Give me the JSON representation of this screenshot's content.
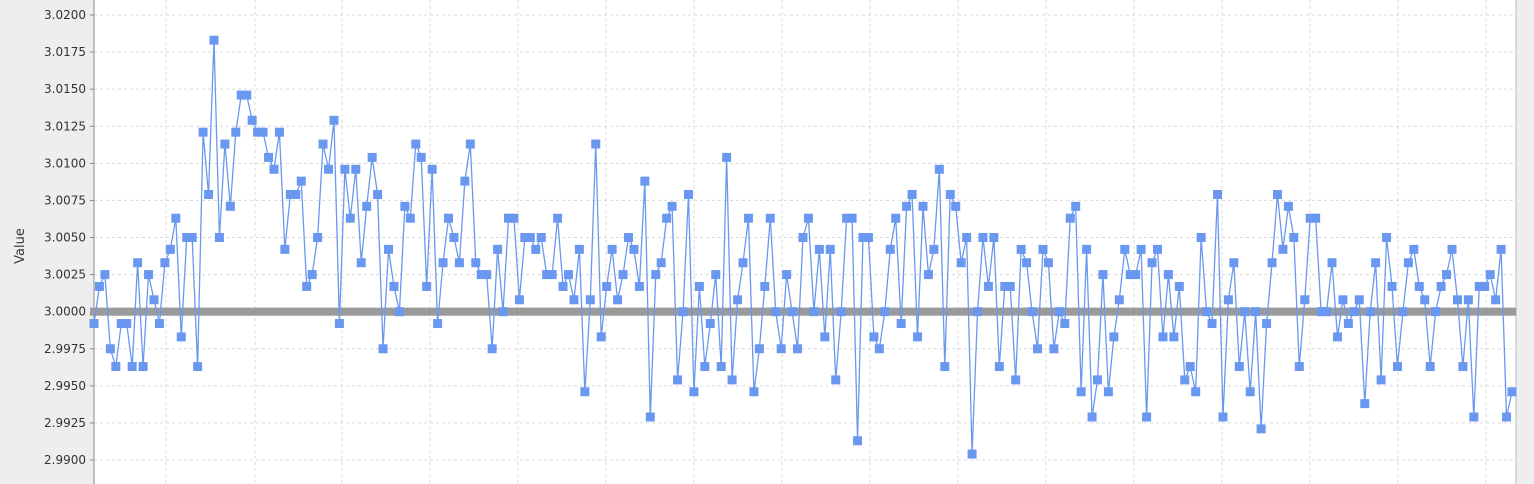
{
  "colors": {
    "background": "#eeeeee",
    "plot_background": "#ffffff",
    "grid": "#d9d9d9",
    "series_1": "#6a98f0",
    "series_2": "#9a9a9a"
  },
  "chart_data": {
    "type": "line",
    "title": "",
    "xlabel": "",
    "ylabel": "Value",
    "ylim": [
      2.9884,
      3.0211
    ],
    "grid": true,
    "markers": "square",
    "yticks": [
      "3.0200",
      "3.0175",
      "3.0150",
      "3.0125",
      "3.0100",
      "3.0075",
      "3.0050",
      "3.0025",
      "3.0000",
      "2.9975",
      "2.9950",
      "2.9925",
      "2.9900"
    ],
    "series": [
      {
        "values": [
          2.9992,
          3.0017,
          3.0025,
          2.9975,
          2.9963,
          2.9992,
          2.9992,
          2.9963,
          3.0033,
          2.9963,
          3.0025,
          3.0008,
          2.9992,
          3.0033,
          3.0042,
          3.0063,
          2.9983,
          3.005,
          3.005,
          2.9963,
          3.0121,
          3.0079,
          3.0183,
          3.005,
          3.0113,
          3.0071,
          3.0121,
          3.0146,
          3.0146,
          3.0129,
          3.0121,
          3.0121,
          3.0104,
          3.0096,
          3.0121,
          3.0042,
          3.0079,
          3.0079,
          3.0088,
          3.0017,
          3.0025,
          3.005,
          3.0113,
          3.0096,
          3.0129,
          2.9992,
          3.0096,
          3.0063,
          3.0096,
          3.0033,
          3.0071,
          3.0104,
          3.0079,
          2.9975,
          3.0042,
          3.0017,
          3.0,
          3.0071,
          3.0063,
          3.0113,
          3.0104,
          3.0017,
          3.0096,
          2.9992,
          3.0033,
          3.0063,
          3.005,
          3.0033,
          3.0088,
          3.0113,
          3.0033,
          3.0025,
          3.0025,
          2.9975,
          3.0042,
          3.0,
          3.0063,
          3.0063,
          3.0008,
          3.005,
          3.005,
          3.0042,
          3.005,
          3.0025,
          3.0025,
          3.0063,
          3.0017,
          3.0025,
          3.0008,
          3.0042,
          2.9946,
          3.0008,
          3.0113,
          2.9983,
          3.0017,
          3.0042,
          3.0008,
          3.0025,
          3.005,
          3.0042,
          3.0017,
          3.0088,
          2.9929,
          3.0025,
          3.0033,
          3.0063,
          3.0071,
          2.9954,
          3.0,
          3.0079,
          2.9946,
          3.0017,
          2.9963,
          2.9992,
          3.0025,
          2.9963,
          3.0104,
          2.9954,
          3.0008,
          3.0033,
          3.0063,
          2.9946,
          2.9975,
          3.0017,
          3.0063,
          3.0,
          2.9975,
          3.0025,
          3.0,
          2.9975,
          3.005,
          3.0063,
          3.0,
          3.0042,
          2.9983,
          3.0042,
          2.9954,
          3.0,
          3.0063,
          3.0063,
          2.9913,
          3.005,
          3.005,
          2.9983,
          2.9975,
          3.0,
          3.0042,
          3.0063,
          2.9992,
          3.0071,
          3.0079,
          2.9983,
          3.0071,
          3.0025,
          3.0042,
          3.0096,
          2.9963,
          3.0079,
          3.0071,
          3.0033,
          3.005,
          2.9904,
          3.0,
          3.005,
          3.0017,
          3.005,
          2.9963,
          3.0017,
          3.0017,
          2.9954,
          3.0042,
          3.0033,
          3.0,
          2.9975,
          3.0042,
          3.0033,
          2.9975,
          3.0,
          2.9992,
          3.0063,
          3.0071,
          2.9946,
          3.0042,
          2.9929,
          2.9954,
          3.0025,
          2.9946,
          2.9983,
          3.0008,
          3.0042,
          3.0025,
          3.0025,
          3.0042,
          2.9929,
          3.0033,
          3.0042,
          2.9983,
          3.0025,
          2.9983,
          3.0017,
          2.9954,
          2.9963,
          2.9946,
          3.005,
          3.0,
          2.9992,
          3.0079,
          2.9929,
          3.0008,
          3.0033,
          2.9963,
          3.0,
          2.9946,
          3.0,
          2.9921,
          2.9992,
          3.0033,
          3.0079,
          3.0042,
          3.0071,
          3.005,
          2.9963,
          3.0008,
          3.0063,
          3.0063,
          3.0,
          3.0,
          3.0033,
          2.9983,
          3.0008,
          2.9992,
          3.0,
          3.0008,
          2.9938,
          3.0,
          3.0033,
          2.9954,
          3.005,
          3.0017,
          2.9963,
          3.0,
          3.0033,
          3.0042,
          3.0017,
          3.0008,
          2.9963,
          3.0,
          3.0017,
          3.0025,
          3.0042,
          3.0008,
          2.9963,
          3.0008,
          2.9929,
          3.0017,
          3.0017,
          3.0025,
          3.0008,
          3.0042,
          2.9929,
          2.9946
        ]
      },
      {
        "values": "constant",
        "constant_value": 3.0
      }
    ]
  }
}
